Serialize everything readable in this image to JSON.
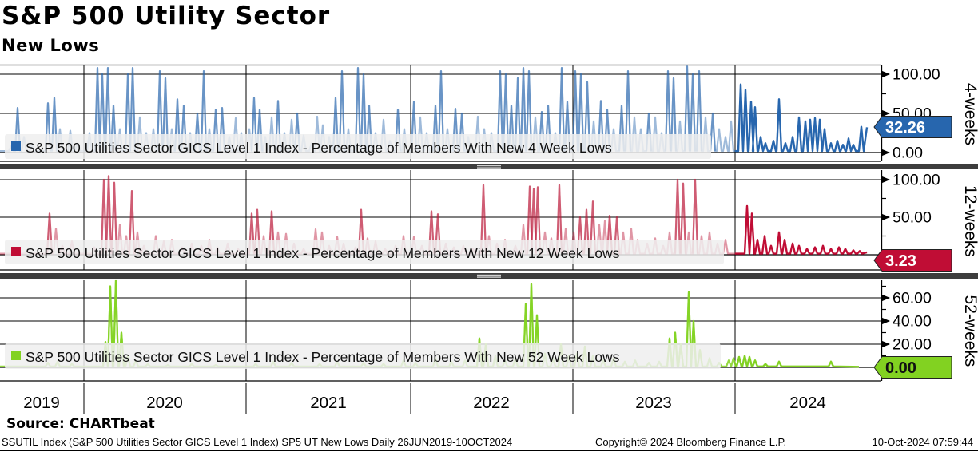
{
  "header": {
    "title": "S&P 500 Utility Sector",
    "subtitle": "New Lows"
  },
  "footer": {
    "source": "Source: CHARTbeat",
    "info": "SSUTIL Index (S&P 500 Utilities Sector GICS Level 1 Index) SP5 UT New Lows  Daily 26JUN2019-10OCT2024",
    "copyright": "Copyright© 2024 Bloomberg Finance L.P.",
    "timestamp": "10-Oct-2024 07:59:44"
  },
  "x_axis": {
    "years": [
      "2019",
      "2020",
      "2021",
      "2022",
      "2023",
      "2024"
    ],
    "range_note": "x_px spans the 0-1103 px time axis covering 26JUN2019 through 10OCT2024; recent (2024) segment begins at x_px 920"
  },
  "chart_data": [
    {
      "type": "line",
      "name": "4-weeks",
      "legend": "S&P 500 Utilities Sector GICS Level 1 Index - Percentage of Members With New 4 Week Lows",
      "color_strong": "#2766ae",
      "color_muted": "rgba(39,102,174,0.45)",
      "ylim": [
        0,
        112
      ],
      "yticks_major": [
        {
          "v": 100,
          "label": "100.00"
        },
        {
          "v": 50,
          "label": "50.00"
        },
        {
          "v": 0,
          "label": "0.00"
        }
      ],
      "yticks_minor": [
        75,
        25
      ],
      "last_value": 32.26,
      "tag": {
        "label": "32.26",
        "fill": "#2766ae",
        "text_color": "#ffffff"
      },
      "baseline": 2,
      "strong_threshold": 50,
      "spikes": [
        [
          14,
          8
        ],
        [
          22,
          57
        ],
        [
          30,
          20
        ],
        [
          40,
          10
        ],
        [
          60,
          63
        ],
        [
          68,
          70
        ],
        [
          75,
          30
        ],
        [
          88,
          28
        ],
        [
          97,
          12
        ],
        [
          112,
          25
        ],
        [
          122,
          108
        ],
        [
          128,
          100
        ],
        [
          135,
          108
        ],
        [
          142,
          60
        ],
        [
          150,
          30
        ],
        [
          160,
          100
        ],
        [
          166,
          108
        ],
        [
          175,
          45
        ],
        [
          183,
          25
        ],
        [
          192,
          30
        ],
        [
          200,
          104
        ],
        [
          207,
          95
        ],
        [
          215,
          30
        ],
        [
          222,
          68
        ],
        [
          230,
          60
        ],
        [
          238,
          25
        ],
        [
          247,
          50
        ],
        [
          255,
          104
        ],
        [
          262,
          30
        ],
        [
          270,
          55
        ],
        [
          278,
          57
        ],
        [
          287,
          20
        ],
        [
          295,
          44
        ],
        [
          302,
          25
        ],
        [
          312,
          30
        ],
        [
          318,
          70
        ],
        [
          325,
          55
        ],
        [
          332,
          20
        ],
        [
          340,
          45
        ],
        [
          348,
          66
        ],
        [
          356,
          25
        ],
        [
          365,
          42
        ],
        [
          372,
          50
        ],
        [
          380,
          22
        ],
        [
          390,
          12
        ],
        [
          397,
          46
        ],
        [
          404,
          35
        ],
        [
          412,
          20
        ],
        [
          420,
          70
        ],
        [
          428,
          104
        ],
        [
          436,
          30
        ],
        [
          448,
          108
        ],
        [
          455,
          100
        ],
        [
          462,
          60
        ],
        [
          470,
          25
        ],
        [
          480,
          42
        ],
        [
          488,
          15
        ],
        [
          498,
          55
        ],
        [
          506,
          30
        ],
        [
          518,
          65
        ],
        [
          526,
          45
        ],
        [
          534,
          25
        ],
        [
          545,
          60
        ],
        [
          552,
          104
        ],
        [
          560,
          30
        ],
        [
          570,
          56
        ],
        [
          578,
          50
        ],
        [
          586,
          20
        ],
        [
          598,
          46
        ],
        [
          606,
          30
        ],
        [
          615,
          25
        ],
        [
          626,
          104
        ],
        [
          633,
          100
        ],
        [
          640,
          60
        ],
        [
          648,
          95
        ],
        [
          655,
          108
        ],
        [
          662,
          104
        ],
        [
          670,
          45
        ],
        [
          678,
          52
        ],
        [
          686,
          60
        ],
        [
          695,
          25
        ],
        [
          703,
          108
        ],
        [
          710,
          65
        ],
        [
          720,
          104
        ],
        [
          727,
          100
        ],
        [
          735,
          90
        ],
        [
          743,
          40
        ],
        [
          752,
          66
        ],
        [
          760,
          55
        ],
        [
          768,
          30
        ],
        [
          778,
          60
        ],
        [
          786,
          104
        ],
        [
          794,
          45
        ],
        [
          802,
          30
        ],
        [
          812,
          50
        ],
        [
          820,
          45
        ],
        [
          828,
          25
        ],
        [
          836,
          104
        ],
        [
          843,
          95
        ],
        [
          851,
          40
        ],
        [
          860,
          110
        ],
        [
          867,
          100
        ],
        [
          875,
          104
        ],
        [
          883,
          45
        ],
        [
          892,
          50
        ],
        [
          900,
          30
        ],
        [
          908,
          20
        ],
        [
          915,
          40
        ],
        [
          927,
          87
        ],
        [
          933,
          80
        ],
        [
          940,
          65
        ],
        [
          945,
          58
        ],
        [
          952,
          20
        ],
        [
          958,
          12
        ],
        [
          968,
          15
        ],
        [
          975,
          68
        ],
        [
          983,
          12
        ],
        [
          992,
          20
        ],
        [
          1000,
          45
        ],
        [
          1008,
          40
        ],
        [
          1014,
          42
        ],
        [
          1020,
          44
        ],
        [
          1026,
          42
        ],
        [
          1032,
          30
        ],
        [
          1040,
          12
        ],
        [
          1048,
          15
        ],
        [
          1055,
          10
        ],
        [
          1062,
          18
        ],
        [
          1068,
          10
        ],
        [
          1078,
          33
        ]
      ],
      "end": [
        1085,
        32.26
      ]
    },
    {
      "type": "line",
      "name": "12-weeks",
      "legend": "S&P 500 Utilities Sector GICS Level 1 Index - Percentage of Members With New 12 Week Lows",
      "color_strong": "#c00d35",
      "color_muted": "rgba(186,22,55,0.45)",
      "ylim": [
        0,
        112
      ],
      "yticks_major": [
        {
          "v": 100,
          "label": "100.00"
        },
        {
          "v": 50,
          "label": "50.00"
        }
      ],
      "yticks_minor": [
        75,
        25
      ],
      "last_value": 3.23,
      "tag": {
        "label": "3.23",
        "fill": "#c00d35",
        "text_color": "#ffffff"
      },
      "baseline": 1.5,
      "strong_threshold": 50,
      "spikes": [
        [
          20,
          8
        ],
        [
          35,
          5
        ],
        [
          62,
          55
        ],
        [
          70,
          35
        ],
        [
          78,
          12
        ],
        [
          90,
          18
        ],
        [
          118,
          10
        ],
        [
          130,
          100
        ],
        [
          136,
          105
        ],
        [
          143,
          96
        ],
        [
          150,
          40
        ],
        [
          158,
          25
        ],
        [
          165,
          85
        ],
        [
          172,
          30
        ],
        [
          180,
          12
        ],
        [
          195,
          25
        ],
        [
          205,
          18
        ],
        [
          215,
          20
        ],
        [
          228,
          10
        ],
        [
          240,
          15
        ],
        [
          252,
          12
        ],
        [
          262,
          20
        ],
        [
          272,
          10
        ],
        [
          285,
          15
        ],
        [
          298,
          8
        ],
        [
          315,
          55
        ],
        [
          322,
          60
        ],
        [
          330,
          25
        ],
        [
          340,
          58
        ],
        [
          348,
          30
        ],
        [
          358,
          28
        ],
        [
          368,
          15
        ],
        [
          380,
          8
        ],
        [
          395,
          34
        ],
        [
          403,
          30
        ],
        [
          412,
          12
        ],
        [
          422,
          24
        ],
        [
          430,
          15
        ],
        [
          445,
          10
        ],
        [
          452,
          60
        ],
        [
          460,
          22
        ],
        [
          470,
          18
        ],
        [
          482,
          8
        ],
        [
          495,
          12
        ],
        [
          505,
          25
        ],
        [
          518,
          24
        ],
        [
          528,
          12
        ],
        [
          540,
          58
        ],
        [
          548,
          54
        ],
        [
          558,
          15
        ],
        [
          568,
          10
        ],
        [
          580,
          12
        ],
        [
          592,
          8
        ],
        [
          605,
          93
        ],
        [
          612,
          25
        ],
        [
          622,
          15
        ],
        [
          632,
          20
        ],
        [
          645,
          12
        ],
        [
          655,
          40
        ],
        [
          663,
          91
        ],
        [
          668,
          88
        ],
        [
          673,
          90
        ],
        [
          682,
          30
        ],
        [
          690,
          22
        ],
        [
          700,
          93
        ],
        [
          708,
          35
        ],
        [
          718,
          30
        ],
        [
          726,
          50
        ],
        [
          734,
          60
        ],
        [
          742,
          71
        ],
        [
          750,
          40
        ],
        [
          757,
          45
        ],
        [
          763,
          52
        ],
        [
          772,
          50
        ],
        [
          780,
          30
        ],
        [
          790,
          35
        ],
        [
          798,
          20
        ],
        [
          810,
          15
        ],
        [
          820,
          22
        ],
        [
          830,
          12
        ],
        [
          838,
          30
        ],
        [
          848,
          100
        ],
        [
          855,
          95
        ],
        [
          862,
          30
        ],
        [
          870,
          100
        ],
        [
          878,
          25
        ],
        [
          888,
          30
        ],
        [
          898,
          15
        ],
        [
          908,
          20
        ],
        [
          935,
          65
        ],
        [
          941,
          55
        ],
        [
          948,
          20
        ],
        [
          957,
          25
        ],
        [
          965,
          12
        ],
        [
          975,
          30
        ],
        [
          982,
          20
        ],
        [
          992,
          15
        ],
        [
          1000,
          12
        ],
        [
          1010,
          8
        ],
        [
          1020,
          10
        ],
        [
          1030,
          12
        ],
        [
          1040,
          8
        ],
        [
          1050,
          10
        ],
        [
          1058,
          8
        ],
        [
          1068,
          6
        ],
        [
          1076,
          5
        ]
      ],
      "end": [
        1085,
        3.23
      ]
    },
    {
      "type": "line",
      "name": "52-weeks",
      "legend": "S&P 500 Utilities Sector GICS Level 1 Index - Percentage of Members With New 52 Week Lows",
      "color_strong": "#82d221",
      "color_muted": "rgba(130,210,33,0.85)",
      "ylim": [
        0,
        76
      ],
      "yticks_major": [
        {
          "v": 60,
          "label": "60.00"
        },
        {
          "v": 40,
          "label": "40.00"
        },
        {
          "v": 20,
          "label": "20.00"
        }
      ],
      "yticks_minor": [
        70,
        50,
        30,
        10
      ],
      "last_value": 0.0,
      "tag": {
        "label": "0.00",
        "fill": "#82d221",
        "text_color": "#111111"
      },
      "baseline": 0.8,
      "strong_threshold": 15,
      "spikes": [
        [
          60,
          4
        ],
        [
          72,
          5
        ],
        [
          90,
          3
        ],
        [
          132,
          22
        ],
        [
          138,
          70
        ],
        [
          145,
          76
        ],
        [
          152,
          30
        ],
        [
          160,
          10
        ],
        [
          170,
          6
        ],
        [
          185,
          3
        ],
        [
          210,
          2
        ],
        [
          240,
          3
        ],
        [
          270,
          2
        ],
        [
          320,
          3
        ],
        [
          342,
          5
        ],
        [
          365,
          4
        ],
        [
          400,
          3
        ],
        [
          422,
          5
        ],
        [
          455,
          4
        ],
        [
          480,
          3
        ],
        [
          505,
          6
        ],
        [
          520,
          4
        ],
        [
          545,
          8
        ],
        [
          565,
          5
        ],
        [
          582,
          6
        ],
        [
          600,
          25
        ],
        [
          608,
          20
        ],
        [
          620,
          10
        ],
        [
          632,
          6
        ],
        [
          645,
          8
        ],
        [
          658,
          55
        ],
        [
          665,
          72
        ],
        [
          672,
          45
        ],
        [
          682,
          12
        ],
        [
          692,
          8
        ],
        [
          702,
          20
        ],
        [
          712,
          10
        ],
        [
          722,
          12
        ],
        [
          732,
          18
        ],
        [
          742,
          10
        ],
        [
          755,
          6
        ],
        [
          768,
          8
        ],
        [
          782,
          5
        ],
        [
          795,
          6
        ],
        [
          812,
          4
        ],
        [
          825,
          5
        ],
        [
          838,
          25
        ],
        [
          845,
          30
        ],
        [
          852,
          20
        ],
        [
          862,
          65
        ],
        [
          868,
          40
        ],
        [
          876,
          15
        ],
        [
          888,
          8
        ],
        [
          900,
          4
        ],
        [
          912,
          6
        ],
        [
          918,
          8
        ],
        [
          925,
          9
        ],
        [
          932,
          10
        ],
        [
          938,
          9
        ],
        [
          945,
          6
        ],
        [
          958,
          3
        ],
        [
          975,
          5
        ],
        [
          1040,
          5
        ]
      ],
      "end": [
        1075,
        0.0
      ]
    }
  ]
}
